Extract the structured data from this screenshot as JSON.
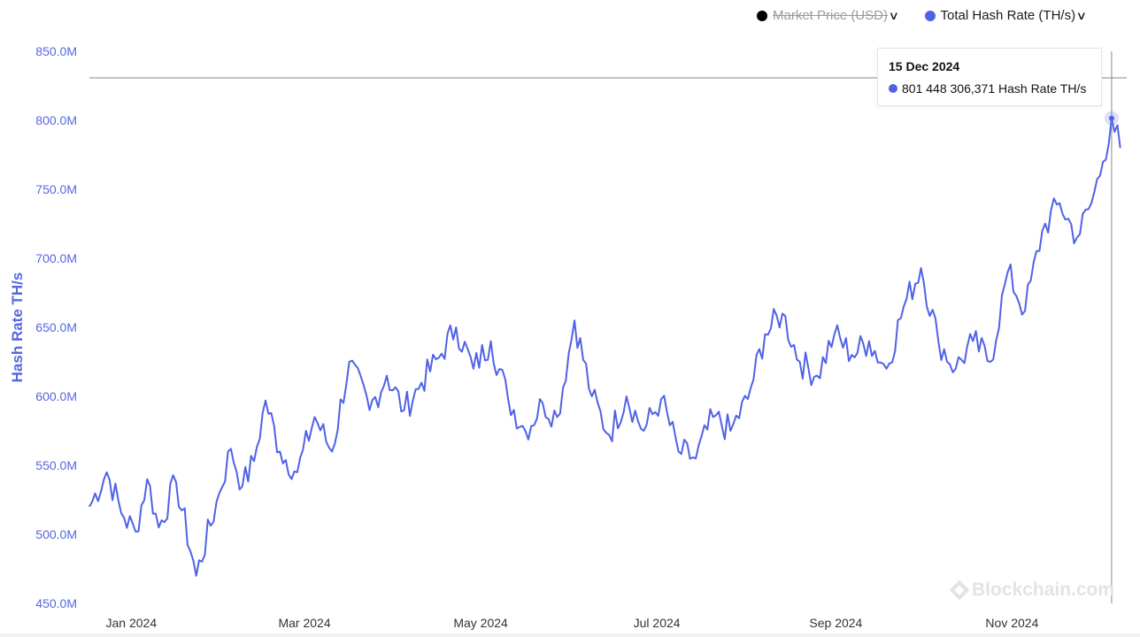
{
  "legend": {
    "items": [
      {
        "label": "Market Price (USD)",
        "color": "#000000",
        "enabled": false
      },
      {
        "label": "Total Hash Rate (TH/s)",
        "color": "#4f62e6",
        "enabled": true
      }
    ]
  },
  "tooltip": {
    "date": "15 Dec 2024",
    "value_text": "801 448 306,371 Hash Rate TH/s"
  },
  "watermark": "Blockchain.com",
  "colors": {
    "line": "#4f62e6",
    "axis_text": "#5468e0",
    "tick_text": "#333333",
    "crosshair": "#888888"
  },
  "chart_data": {
    "type": "line",
    "title": "",
    "xlabel": "",
    "ylabel": "Hash Rate TH/s",
    "y_unit": "TH/s",
    "ylim": [
      450000000,
      850000000
    ],
    "yticks": [
      {
        "value": 450000000,
        "label": "450.0M"
      },
      {
        "value": 500000000,
        "label": "500.0M"
      },
      {
        "value": 550000000,
        "label": "550.0M"
      },
      {
        "value": 600000000,
        "label": "600.0M"
      },
      {
        "value": 650000000,
        "label": "650.0M"
      },
      {
        "value": 700000000,
        "label": "700.0M"
      },
      {
        "value": 750000000,
        "label": "750.0M"
      },
      {
        "value": 800000000,
        "label": "800.0M"
      },
      {
        "value": 850000000,
        "label": "850.0M"
      }
    ],
    "xlim": [
      "2023-12-27",
      "2024-12-19"
    ],
    "xticks": [
      {
        "date": "2024-01-01",
        "label": "Jan 2024"
      },
      {
        "date": "2024-03-01",
        "label": "Mar 2024"
      },
      {
        "date": "2024-05-01",
        "label": "May 2024"
      },
      {
        "date": "2024-07-01",
        "label": "Jul 2024"
      },
      {
        "date": "2024-09-01",
        "label": "Sep 2024"
      },
      {
        "date": "2024-11-01",
        "label": "Nov 2024"
      }
    ],
    "grid": false,
    "legend_position": "top-right",
    "highlight": {
      "date": "2024-12-15",
      "value": 801448306
    }
  }
}
